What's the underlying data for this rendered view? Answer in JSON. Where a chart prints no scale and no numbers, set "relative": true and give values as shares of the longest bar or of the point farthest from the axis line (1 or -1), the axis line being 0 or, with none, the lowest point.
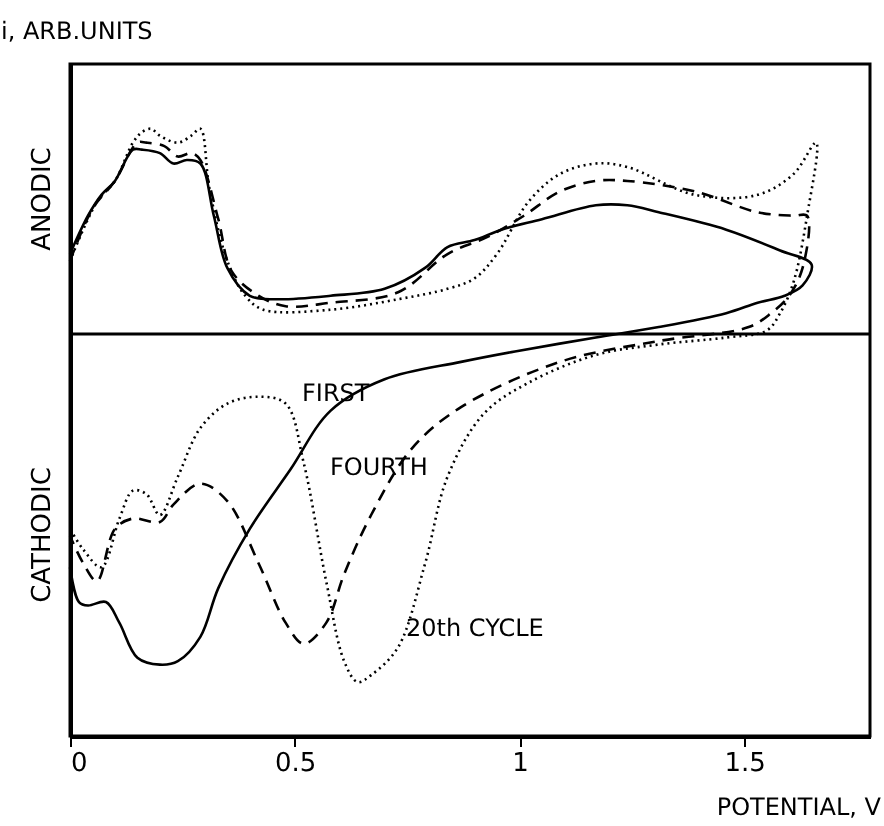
{
  "chart_data": {
    "type": "line",
    "relative": true,
    "xlabel": "POTENTIAL, V",
    "ylabel": "i, ARB.UNITS",
    "xlim": [
      0,
      1.78
    ],
    "xticks": [
      0,
      0.5,
      1,
      1.5
    ],
    "grid": false,
    "marker": "none",
    "annotations": [
      "ANODIC",
      "CATHODIC"
    ],
    "series": [
      {
        "name": "FIRST",
        "color": "#000000",
        "line_style": "solid",
        "x": [
          0.0,
          0.04,
          0.07,
          0.1,
          0.14,
          0.16,
          0.2,
          0.23,
          0.26,
          0.29,
          0.32,
          0.35,
          0.4,
          0.46,
          0.58,
          0.7,
          0.79,
          0.84,
          0.9,
          0.96,
          1.05,
          1.17,
          1.24,
          1.31,
          1.46,
          1.58,
          1.65,
          1.63,
          1.59,
          1.53,
          1.46,
          1.31,
          1.17,
          0.99,
          0.87,
          0.7,
          0.58,
          0.49,
          0.4,
          0.33,
          0.29,
          0.24,
          0.2,
          0.15,
          0.11,
          0.08,
          0.04,
          0.02,
          0.0
        ],
        "values": [
          0.23,
          0.34,
          0.4,
          0.44,
          0.53,
          0.53,
          0.52,
          0.49,
          0.5,
          0.49,
          0.34,
          0.19,
          0.11,
          0.1,
          0.11,
          0.13,
          0.19,
          0.25,
          0.27,
          0.3,
          0.33,
          0.37,
          0.37,
          0.35,
          0.3,
          0.24,
          0.2,
          0.14,
          0.11,
          0.09,
          0.06,
          0.02,
          -0.01,
          -0.05,
          -0.08,
          -0.13,
          -0.22,
          -0.39,
          -0.56,
          -0.73,
          -0.87,
          -0.94,
          -0.95,
          -0.93,
          -0.83,
          -0.77,
          -0.78,
          -0.77,
          -0.67
        ]
      },
      {
        "name": "FOURTH",
        "color": "#000000",
        "line_style": "dashed",
        "x": [
          0.0,
          0.05,
          0.1,
          0.15,
          0.17,
          0.21,
          0.24,
          0.27,
          0.29,
          0.33,
          0.36,
          0.42,
          0.48,
          0.58,
          0.73,
          0.84,
          0.93,
          1.01,
          1.09,
          1.17,
          1.24,
          1.39,
          1.53,
          1.61,
          1.64,
          1.63,
          1.6,
          1.56,
          1.51,
          1.31,
          1.09,
          0.87,
          0.76,
          0.67,
          0.61,
          0.57,
          0.52,
          0.48,
          0.42,
          0.35,
          0.29,
          0.23,
          0.2,
          0.14,
          0.1,
          0.06,
          0.03,
          0.0
        ],
        "values": [
          0.21,
          0.36,
          0.44,
          0.55,
          0.55,
          0.54,
          0.51,
          0.52,
          0.5,
          0.33,
          0.18,
          0.11,
          0.08,
          0.09,
          0.12,
          0.23,
          0.28,
          0.34,
          0.41,
          0.44,
          0.44,
          0.41,
          0.35,
          0.34,
          0.34,
          0.19,
          0.11,
          0.06,
          0.02,
          -0.02,
          -0.08,
          -0.21,
          -0.33,
          -0.52,
          -0.69,
          -0.83,
          -0.89,
          -0.83,
          -0.66,
          -0.48,
          -0.43,
          -0.49,
          -0.54,
          -0.53,
          -0.56,
          -0.71,
          -0.66,
          -0.58
        ]
      },
      {
        "name": "20th CYCLE",
        "color": "#000000",
        "line_style": "dotted",
        "x": [
          0.0,
          0.06,
          0.1,
          0.14,
          0.16,
          0.18,
          0.2,
          0.24,
          0.27,
          0.29,
          0.31,
          0.35,
          0.39,
          0.43,
          0.58,
          0.73,
          0.84,
          0.9,
          0.95,
          1.02,
          1.09,
          1.17,
          1.24,
          1.39,
          1.53,
          1.61,
          1.66,
          1.64,
          1.61,
          1.58,
          1.55,
          1.46,
          1.31,
          1.17,
          1.02,
          0.92,
          0.84,
          0.79,
          0.73,
          0.67,
          0.64,
          0.61,
          0.57,
          0.52,
          0.48,
          0.42,
          0.35,
          0.29,
          0.24,
          0.2,
          0.17,
          0.14,
          0.11,
          0.07,
          0.03,
          0.0
        ],
        "values": [
          0.21,
          0.38,
          0.44,
          0.55,
          0.58,
          0.59,
          0.57,
          0.55,
          0.57,
          0.59,
          0.42,
          0.21,
          0.11,
          0.07,
          0.07,
          0.1,
          0.13,
          0.16,
          0.23,
          0.38,
          0.46,
          0.49,
          0.48,
          0.4,
          0.4,
          0.46,
          0.55,
          0.34,
          0.15,
          0.06,
          0.01,
          -0.01,
          -0.03,
          -0.06,
          -0.14,
          -0.23,
          -0.41,
          -0.66,
          -0.9,
          -0.98,
          -1.0,
          -0.94,
          -0.71,
          -0.37,
          -0.2,
          -0.18,
          -0.2,
          -0.27,
          -0.41,
          -0.52,
          -0.46,
          -0.45,
          -0.53,
          -0.67,
          -0.62,
          -0.56
        ]
      }
    ]
  }
}
